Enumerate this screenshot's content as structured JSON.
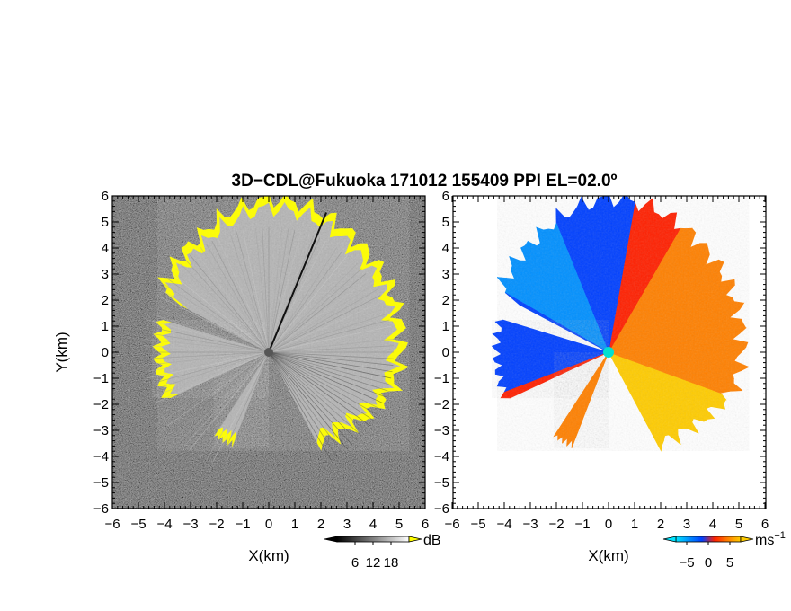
{
  "title": "3D−CDL@Fukuoka 171012 155409 PPI EL=02.0º",
  "chart_data": [
    {
      "type": "heatmap",
      "field": "reflectivity",
      "xlabel": "X(km)",
      "ylabel": "Y(km)",
      "xlim": [
        -6,
        6
      ],
      "ylim": [
        -6,
        6
      ],
      "x_ticks": [
        "−6",
        "−5",
        "−4",
        "−3",
        "−2",
        "−1",
        "0",
        "1",
        "2",
        "3",
        "4",
        "5",
        "6"
      ],
      "y_ticks": [
        "6",
        "5",
        "4",
        "3",
        "2",
        "1",
        "0",
        "−1",
        "−2",
        "−3",
        "−4",
        "−5",
        "−6"
      ],
      "colorbar": {
        "unit": "dB",
        "tick_labels": [
          "6",
          "12",
          "18"
        ],
        "tick_values": [
          6,
          12,
          18
        ],
        "range": [
          0,
          24
        ],
        "colors": [
          "#000000",
          "#ffffff"
        ],
        "saturation_color": "#ffff00"
      },
      "radar_center": [
        0,
        0
      ],
      "max_range_km": 6
    },
    {
      "type": "heatmap",
      "field": "doppler_velocity",
      "xlabel": "X(km)",
      "xlim": [
        -6,
        6
      ],
      "ylim": [
        -6,
        6
      ],
      "x_ticks": [
        "−6",
        "−5",
        "−4",
        "−3",
        "−2",
        "−1",
        "0",
        "1",
        "2",
        "3",
        "4",
        "5",
        "6"
      ],
      "y_ticks": [
        "6",
        "5",
        "4",
        "3",
        "2",
        "1",
        "0",
        "−1",
        "−2",
        "−3",
        "−4",
        "−5",
        "−6"
      ],
      "colorbar": {
        "unit": "ms",
        "unit_exp": "−1",
        "tick_labels": [
          "−5",
          "0",
          "5"
        ],
        "tick_values": [
          -5,
          0,
          5
        ],
        "range": [
          -7.5,
          7.5
        ],
        "colors": [
          "#00e5ff",
          "#0090ff",
          "#0040ff",
          "#ff2000",
          "#ff8000",
          "#ffcc00"
        ]
      },
      "radar_center": [
        0,
        0
      ],
      "max_range_km": 6
    }
  ]
}
